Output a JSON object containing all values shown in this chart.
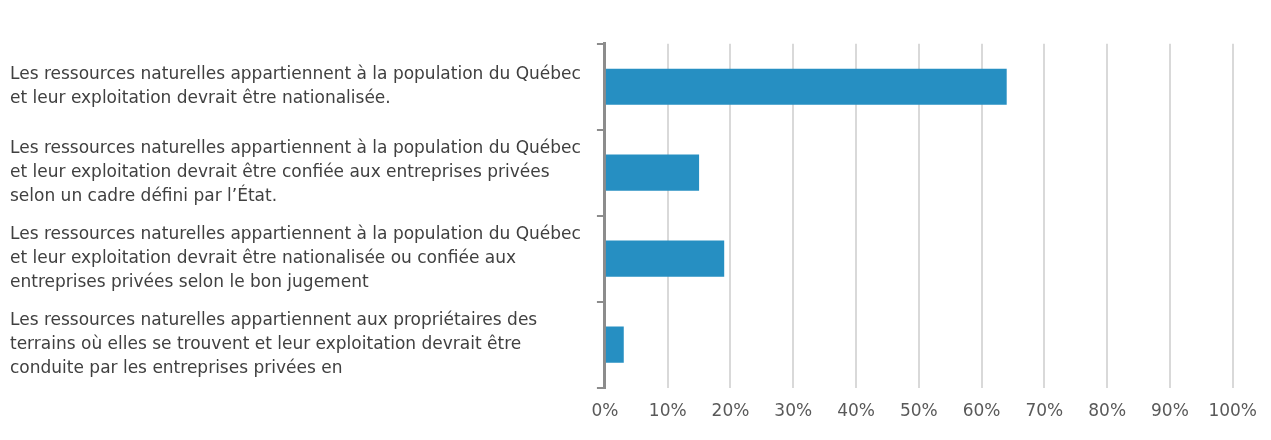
{
  "chart_data": {
    "type": "bar",
    "orientation": "horizontal",
    "categories": [
      "Les ressources naturelles appartiennent à la population du Québec et leur exploitation devrait être nationalisée.",
      "Les ressources naturelles appartiennent à la population du Québec et leur exploitation devrait être confiée aux entreprises privées selon un cadre défini par l’État.",
      "Les ressources naturelles appartiennent à la population du Québec et leur exploitation devrait être nationalisée ou confiée aux entreprises privées selon le bon jugement",
      "Les ressources naturelles appartiennent aux propriétaires des terrains où elles se trouvent et leur exploitation devrait être conduite par les entreprises privées en"
    ],
    "values": [
      64,
      15,
      19,
      3
    ],
    "color": "#268fc2",
    "xlim": [
      0,
      100
    ],
    "xticks": [
      {
        "value": 0,
        "label": "0%"
      },
      {
        "value": 10,
        "label": "10%"
      },
      {
        "value": 20,
        "label": "20%"
      },
      {
        "value": 30,
        "label": "30%"
      },
      {
        "value": 40,
        "label": "40%"
      },
      {
        "value": 50,
        "label": "50%"
      },
      {
        "value": 60,
        "label": "60%"
      },
      {
        "value": 70,
        "label": "70%"
      },
      {
        "value": 80,
        "label": "80%"
      },
      {
        "value": 90,
        "label": "90%"
      },
      {
        "value": 100,
        "label": "100%"
      }
    ],
    "grid": "x",
    "legend": false
  }
}
